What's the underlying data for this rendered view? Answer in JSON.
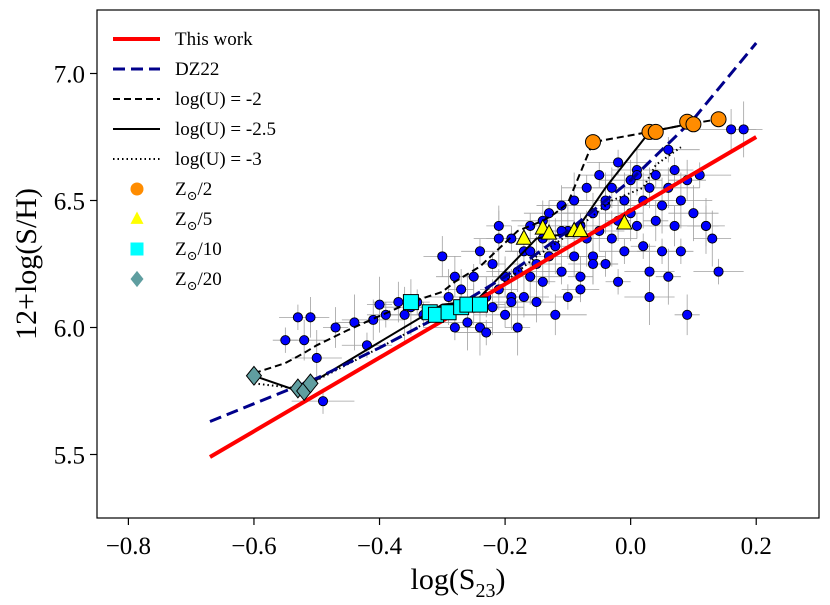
{
  "chart_data": {
    "type": "scatter",
    "xlabel": "log(S",
    "xlabel_sub": "23",
    "xlabel_close": ")",
    "ylabel": "12+log(S/H)",
    "xlim": [
      -0.85,
      0.3
    ],
    "ylim": [
      5.25,
      7.25
    ],
    "xticks": [
      -0.8,
      -0.6,
      -0.4,
      -0.2,
      0.0,
      0.2
    ],
    "xtick_labels": [
      "−0.8",
      "−0.6",
      "−0.4",
      "−0.2",
      "0.0",
      "0.2"
    ],
    "yticks": [
      5.5,
      6.0,
      6.5,
      7.0
    ],
    "ytick_labels": [
      "5.5",
      "6.0",
      "6.5",
      "7.0"
    ],
    "legend_position": "top-left",
    "legend": [
      {
        "label": "This work",
        "kind": "line",
        "style": "solid",
        "color": "#ff0000"
      },
      {
        "label": "DZ22",
        "kind": "line",
        "style": "dashed",
        "color": "#00008b"
      },
      {
        "label": "log(U) = -2",
        "kind": "line",
        "style": "dashed",
        "color": "#000000"
      },
      {
        "label": "log(U) = -2.5",
        "kind": "line",
        "style": "solid",
        "color": "#000000"
      },
      {
        "label": "log(U) = -3",
        "kind": "line",
        "style": "dotted",
        "color": "#000000"
      },
      {
        "label": "Z",
        "sub": "⊙",
        "tail": "/2",
        "kind": "marker",
        "marker": "circle",
        "color": "#ff8c00"
      },
      {
        "label": "Z",
        "sub": "⊙",
        "tail": "/5",
        "kind": "marker",
        "marker": "triangle",
        "color": "#ffff00"
      },
      {
        "label": "Z",
        "sub": "⊙",
        "tail": "/10",
        "kind": "marker",
        "marker": "square",
        "color": "#00ffff"
      },
      {
        "label": "Z",
        "sub": "⊙",
        "tail": "/20",
        "kind": "marker",
        "marker": "diamond",
        "color": "#5f9ea0"
      }
    ],
    "fit_this_work": {
      "x": [
        -0.67,
        0.2
      ],
      "y": [
        5.49,
        6.75
      ]
    },
    "fit_dz22": {
      "x": [
        -0.67,
        -0.6,
        -0.5,
        -0.4,
        -0.3,
        -0.2,
        -0.1,
        0.0,
        0.1,
        0.2
      ],
      "y": [
        5.63,
        5.7,
        5.8,
        5.92,
        6.05,
        6.2,
        6.38,
        6.58,
        6.82,
        7.12
      ]
    },
    "model_logU_m2": {
      "x": [
        -0.6,
        -0.55,
        -0.52,
        -0.5,
        -0.45,
        -0.35,
        -0.3,
        -0.28,
        -0.24,
        -0.18,
        -0.14,
        -0.12,
        -0.1,
        -0.06,
        0.03,
        0.09,
        0.14
      ],
      "y": [
        5.82,
        5.86,
        5.9,
        5.93,
        5.99,
        6.1,
        6.14,
        6.18,
        6.24,
        6.38,
        6.42,
        6.45,
        6.49,
        6.73,
        6.77,
        6.8,
        6.82
      ]
    },
    "model_logU_m25": {
      "x": [
        -0.6,
        -0.53,
        -0.51,
        -0.3,
        -0.26,
        -0.24,
        -0.15,
        -0.13,
        -0.09,
        -0.04,
        0.03,
        0.09
      ],
      "y": [
        5.81,
        5.75,
        5.78,
        6.09,
        6.1,
        6.12,
        6.35,
        6.36,
        6.37,
        6.55,
        6.77,
        6.8
      ]
    },
    "model_logU_m3": {
      "x": [
        -0.6,
        -0.53,
        -0.51,
        -0.4,
        -0.31,
        -0.25,
        -0.24,
        -0.2,
        -0.15,
        -0.12,
        -0.08,
        -0.03,
        0.02,
        0.04,
        0.08
      ],
      "y": [
        5.78,
        5.76,
        5.78,
        5.92,
        6.04,
        6.07,
        6.1,
        6.18,
        6.28,
        6.33,
        6.4,
        6.5,
        6.55,
        6.64,
        6.71
      ]
    },
    "z_half": {
      "x": [
        -0.06,
        0.03,
        0.04,
        0.09,
        0.1,
        0.14
      ],
      "y": [
        6.73,
        6.77,
        6.77,
        6.81,
        6.8,
        6.82
      ]
    },
    "z_fifth": {
      "x": [
        -0.17,
        -0.14,
        -0.13,
        -0.09,
        -0.08,
        -0.01
      ],
      "y": [
        6.35,
        6.39,
        6.37,
        6.38,
        6.38,
        6.41
      ]
    },
    "z_tenth": {
      "x": [
        -0.35,
        -0.32,
        -0.31,
        -0.29,
        -0.27,
        -0.26,
        -0.24
      ],
      "y": [
        6.1,
        6.06,
        6.05,
        6.06,
        6.08,
        6.09,
        6.09
      ]
    },
    "z_twentieth": {
      "x": [
        -0.6,
        -0.53,
        -0.52,
        -0.51
      ],
      "y": [
        5.81,
        5.76,
        5.75,
        5.78
      ]
    },
    "observations": {
      "x": [
        -0.55,
        -0.51,
        -0.5,
        -0.49,
        -0.47,
        -0.44,
        -0.42,
        -0.41,
        -0.4,
        -0.39,
        -0.37,
        -0.35,
        -0.33,
        -0.3,
        -0.29,
        -0.28,
        -0.27,
        -0.26,
        -0.25,
        -0.25,
        -0.24,
        -0.24,
        -0.23,
        -0.22,
        -0.22,
        -0.21,
        -0.21,
        -0.2,
        -0.2,
        -0.19,
        -0.19,
        -0.18,
        -0.18,
        -0.17,
        -0.17,
        -0.16,
        -0.16,
        -0.15,
        -0.15,
        -0.14,
        -0.14,
        -0.13,
        -0.13,
        -0.12,
        -0.12,
        -0.11,
        -0.11,
        -0.1,
        -0.1,
        -0.09,
        -0.09,
        -0.08,
        -0.08,
        -0.07,
        -0.07,
        -0.06,
        -0.06,
        -0.05,
        -0.05,
        -0.04,
        -0.04,
        -0.03,
        -0.03,
        -0.02,
        -0.02,
        -0.01,
        -0.01,
        0.0,
        0.0,
        0.01,
        0.01,
        0.02,
        0.02,
        0.03,
        0.03,
        0.04,
        0.04,
        0.05,
        0.05,
        0.06,
        0.06,
        0.07,
        0.07,
        0.08,
        0.08,
        0.09,
        0.1,
        0.11,
        0.12,
        0.13,
        0.14,
        0.16,
        0.18,
        -0.53,
        -0.52,
        -0.36,
        -0.34,
        -0.28,
        -0.26,
        -0.23,
        -0.21,
        -0.19,
        -0.16,
        -0.14,
        -0.11,
        -0.08,
        -0.06,
        -0.04,
        -0.02,
        0.01,
        0.03,
        0.06,
        0.09,
        0.12
      ],
      "y": [
        5.95,
        6.04,
        5.88,
        5.71,
        6.0,
        6.02,
        5.93,
        6.03,
        6.09,
        6.05,
        6.1,
        6.08,
        6.05,
        6.28,
        6.12,
        6.0,
        6.15,
        6.1,
        6.2,
        6.09,
        6.0,
        6.3,
        6.12,
        6.08,
        6.25,
        6.15,
        6.35,
        6.05,
        6.2,
        6.12,
        6.35,
        6.22,
        6.0,
        6.3,
        6.12,
        6.2,
        6.4,
        6.1,
        6.25,
        6.35,
        6.18,
        6.28,
        6.45,
        6.05,
        6.32,
        6.22,
        6.48,
        6.38,
        6.12,
        6.28,
        6.5,
        6.4,
        6.2,
        6.35,
        6.55,
        6.45,
        6.28,
        6.6,
        6.38,
        6.48,
        6.25,
        6.55,
        6.35,
        6.65,
        6.42,
        6.5,
        6.3,
        6.58,
        6.45,
        6.4,
        6.62,
        6.5,
        6.32,
        6.55,
        6.22,
        6.6,
        6.42,
        6.48,
        6.3,
        6.55,
        6.2,
        6.62,
        6.4,
        6.5,
        6.3,
        6.58,
        6.45,
        6.6,
        6.4,
        6.35,
        6.22,
        6.78,
        6.78,
        6.04,
        5.95,
        6.05,
        6.1,
        6.2,
        6.02,
        5.98,
        6.4,
        6.1,
        6.3,
        6.42,
        6.38,
        6.15,
        6.25,
        6.5,
        6.18,
        6.6,
        6.12,
        6.7,
        6.05,
        6.4
      ]
    }
  }
}
